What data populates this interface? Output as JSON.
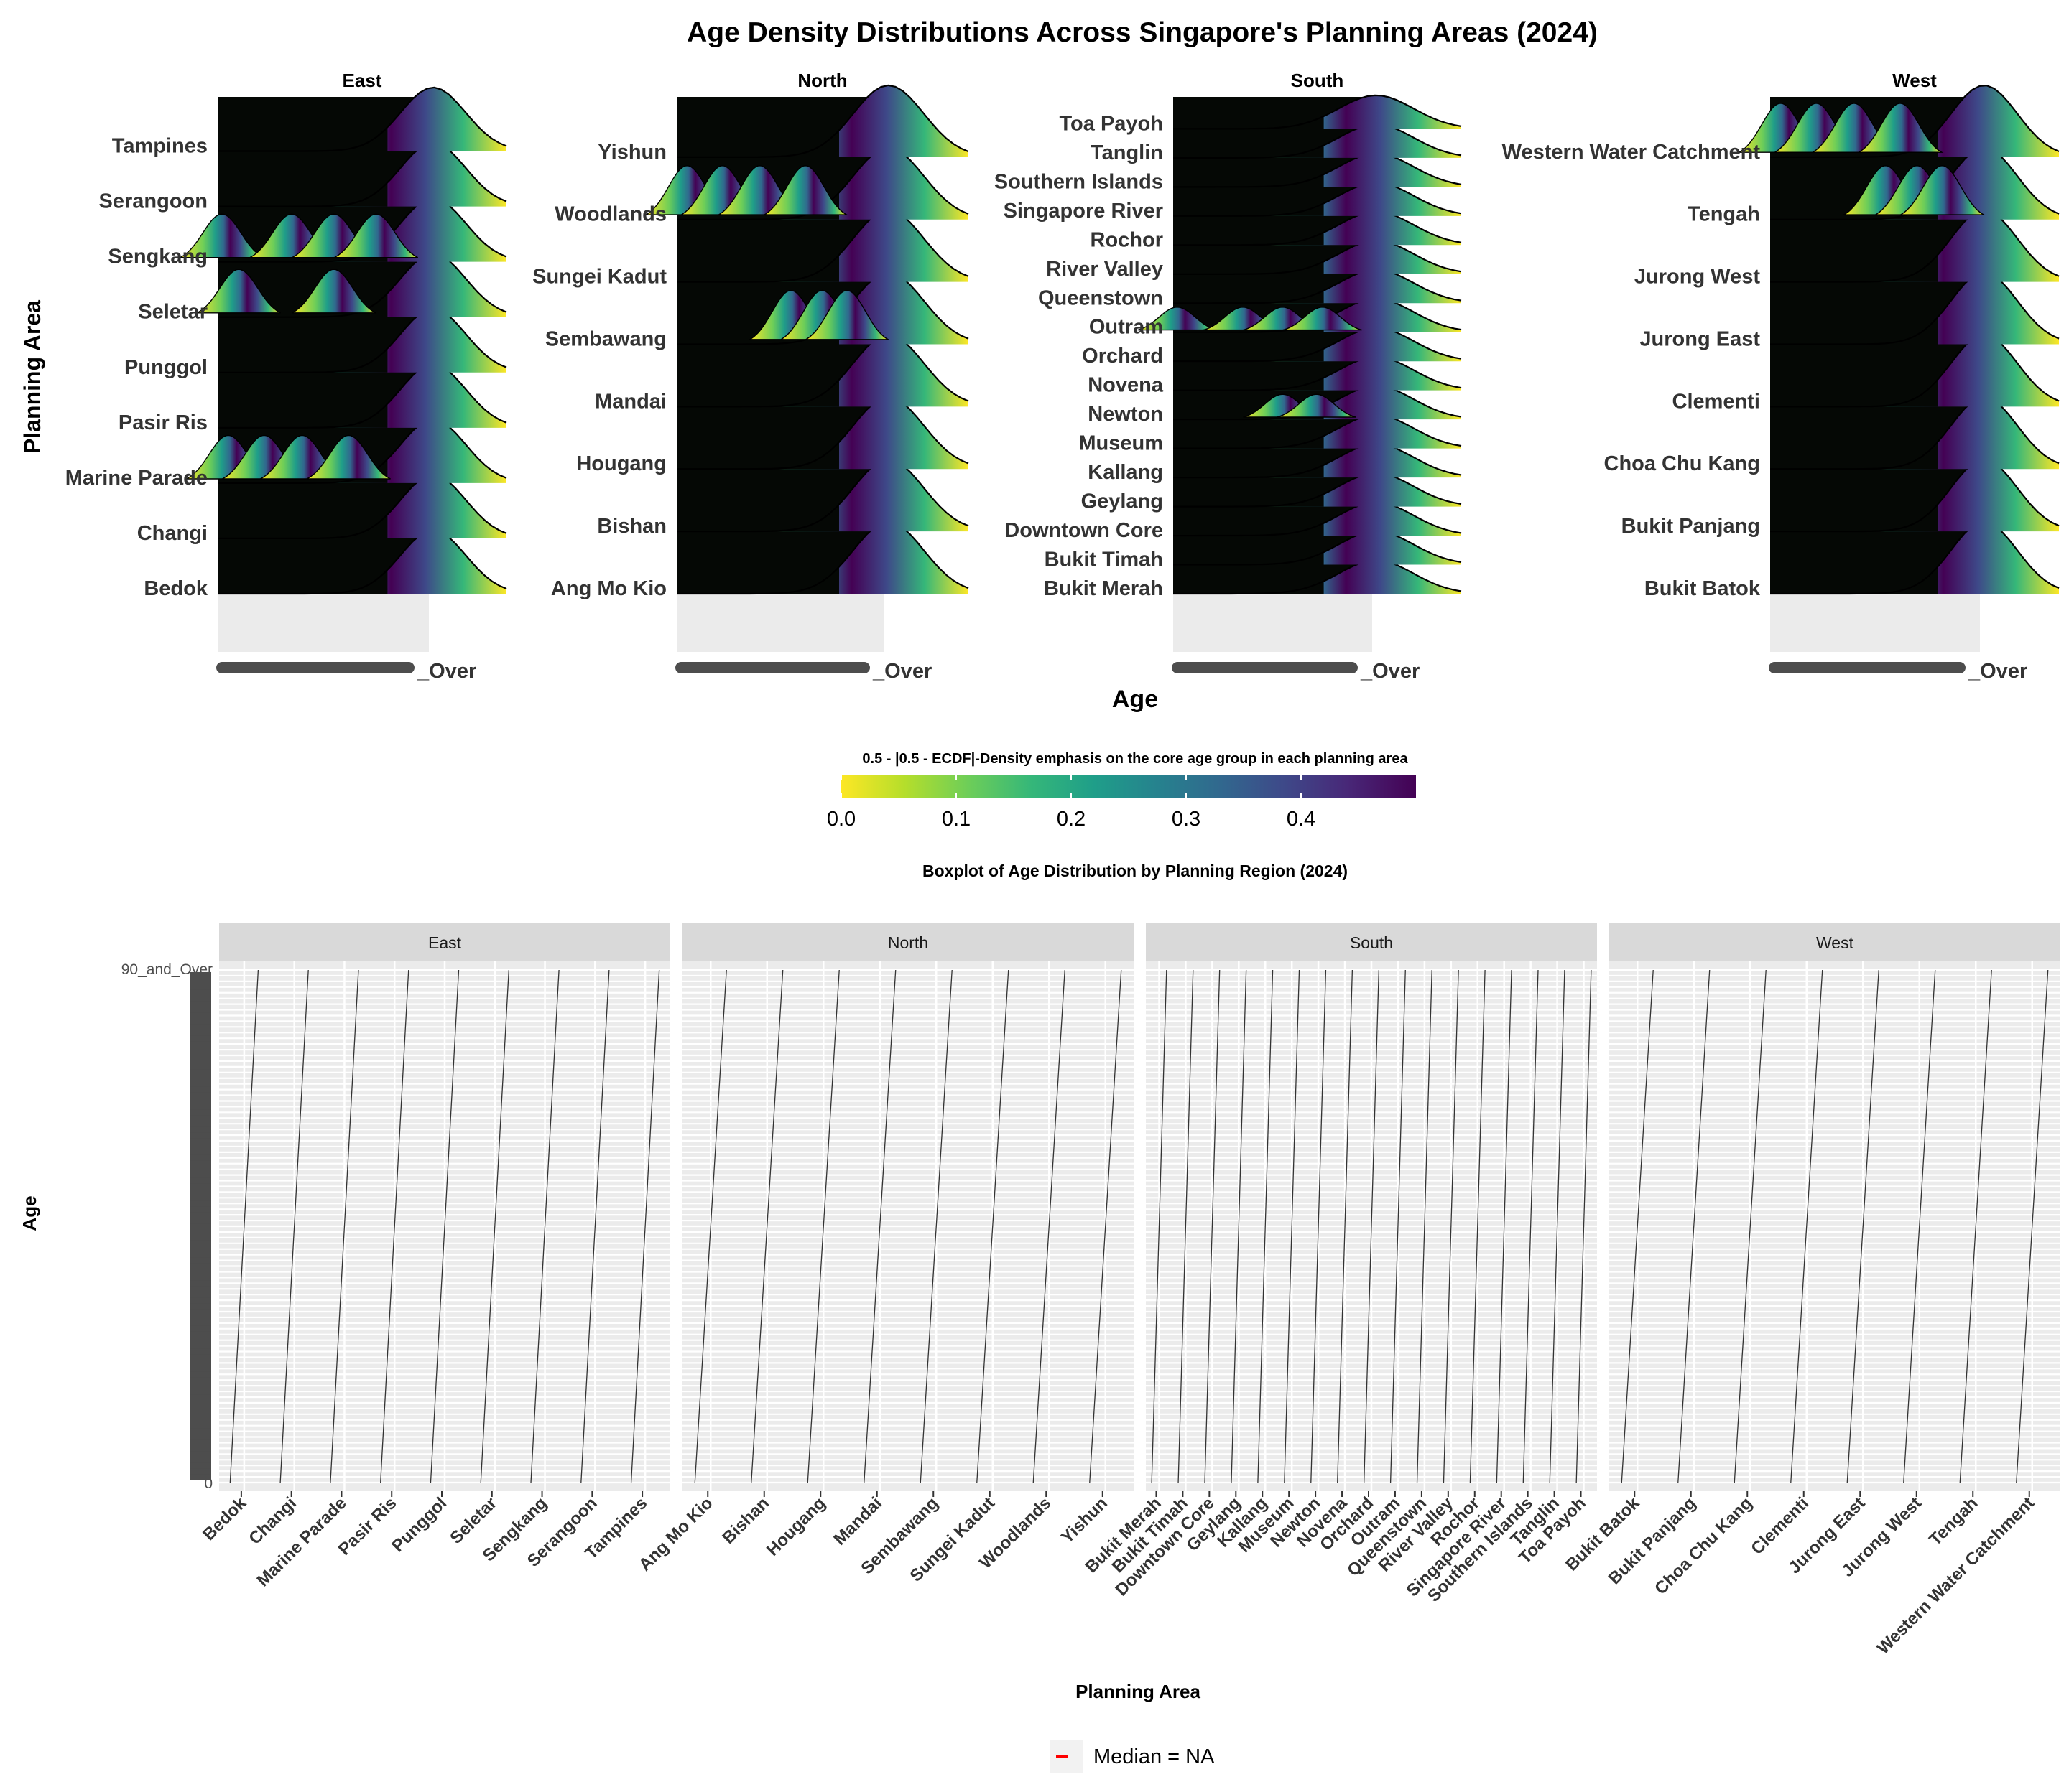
{
  "figure": {
    "title": "Age Density Distributions Across Singapore's Planning Areas (2024)",
    "ridge_ylabel": "Planning Area",
    "ridge_xlabel": "Age",
    "colorbar_title": "0.5 - |0.5 - ECDF|-Density emphasis on the core age group in each planning area",
    "box_title": "Boxplot of Age Distribution by Planning Region (2024)",
    "box_ylabel": "Age",
    "box_xlabel": "Planning Area",
    "legend_label": "Median = NA",
    "ridge_x_tick_tail": "_Over",
    "box_top_tick": "90_and_Over",
    "box_bottom_tick": "0",
    "colors": {
      "viridis": [
        "#fde725",
        "#b5de2b",
        "#6ece58",
        "#35b779",
        "#1f9e89",
        "#26828e",
        "#31688e",
        "#3e4989",
        "#482878",
        "#440154"
      ],
      "panel_bg": "#ebebeb",
      "strip_bg": "#d9d9d9",
      "ridge_fill": "#050805",
      "median": "#ff0000"
    }
  },
  "chart_data": [
    {
      "type": "ridgeline",
      "title": "Age Density Distributions Across Singapore's Planning Areas (2024)",
      "xlabel": "Age",
      "ylabel": "Planning Area",
      "fill_scale": {
        "name": "0.5 - |0.5 - ECDF|-Density emphasis on the core age group in each planning area",
        "range": [
          0,
          0.5
        ],
        "ticks": [
          "0.0",
          "0.1",
          "0.2",
          "0.3",
          "0.4"
        ],
        "palette": "viridis"
      },
      "facets": [
        {
          "name": "East",
          "areas": [
            "Bedok",
            "Changi",
            "Marine Parade",
            "Pasir Ris",
            "Punggol",
            "Seletar",
            "Sengkang",
            "Serangoon",
            "Tampines"
          ]
        },
        {
          "name": "North",
          "areas": [
            "Ang Mo Kio",
            "Bishan",
            "Hougang",
            "Mandai",
            "Sembawang",
            "Sungei Kadut",
            "Woodlands",
            "Yishun"
          ]
        },
        {
          "name": "South",
          "areas": [
            "Bukit Merah",
            "Bukit Timah",
            "Downtown Core",
            "Geylang",
            "Kallang",
            "Museum",
            "Newton",
            "Novena",
            "Orchard",
            "Outram",
            "Queenstown",
            "River Valley",
            "Rochor",
            "Singapore River",
            "Southern Islands",
            "Tanglin",
            "Toa Payoh"
          ]
        },
        {
          "name": "West",
          "areas": [
            "Bukit Batok",
            "Bukit Panjang",
            "Choa Chu Kang",
            "Clementi",
            "Jurong East",
            "Jurong West",
            "Tengah",
            "Western Water Catchment"
          ]
        }
      ]
    },
    {
      "type": "boxplot",
      "title": "Boxplot of Age Distribution by Planning Region (2024)",
      "xlabel": "Planning Area",
      "ylabel": "Age",
      "y_categories_top": "90_and_Over",
      "y_categories_bottom": "0",
      "legend": "Median = NA",
      "facets": [
        {
          "name": "East",
          "areas": [
            "Bedok",
            "Changi",
            "Marine Parade",
            "Pasir Ris",
            "Punggol",
            "Seletar",
            "Sengkang",
            "Serangoon",
            "Tampines"
          ]
        },
        {
          "name": "North",
          "areas": [
            "Ang Mo Kio",
            "Bishan",
            "Hougang",
            "Mandai",
            "Sembawang",
            "Sungei Kadut",
            "Woodlands",
            "Yishun"
          ]
        },
        {
          "name": "South",
          "areas": [
            "Bukit Merah",
            "Bukit Timah",
            "Downtown Core",
            "Geylang",
            "Kallang",
            "Museum",
            "Newton",
            "Novena",
            "Orchard",
            "Outram",
            "Queenstown",
            "River Valley",
            "Rochor",
            "Singapore River",
            "Southern Islands",
            "Tanglin",
            "Toa Payoh"
          ]
        },
        {
          "name": "West",
          "areas": [
            "Bukit Batok",
            "Bukit Panjang",
            "Choa Chu Kang",
            "Clementi",
            "Jurong East",
            "Jurong West",
            "Tengah",
            "Western Water Catchment"
          ]
        }
      ]
    }
  ]
}
